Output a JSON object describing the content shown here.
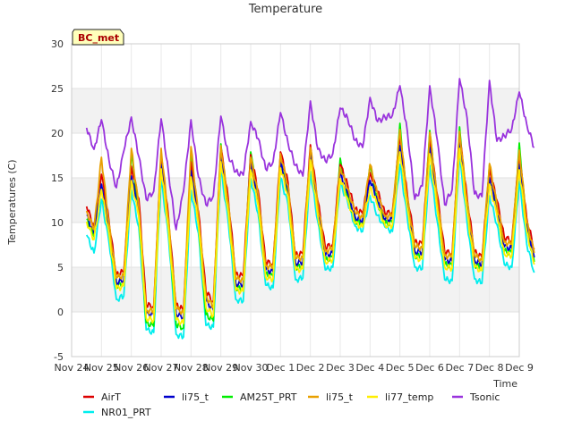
{
  "chart_data": {
    "type": "line",
    "title": "Temperature",
    "xlabel": "Time",
    "ylabel": "Temperatures (C)",
    "site_badge": "BC_met",
    "ylim": [
      -5,
      30
    ],
    "yticks": [
      -5,
      0,
      5,
      10,
      15,
      20,
      25,
      30
    ],
    "xlim": [
      0,
      15
    ],
    "xticks": [
      0,
      1,
      2,
      3,
      4,
      5,
      6,
      7,
      8,
      9,
      10,
      11,
      12,
      13,
      14,
      15
    ],
    "xtick_labels": [
      "Nov 24",
      "Nov 25",
      "Nov 26",
      "Nov 27",
      "Nov 28",
      "Nov 29",
      "Nov 30",
      "Dec 1",
      "Dec 2",
      "Dec 3",
      "Dec 4",
      "Dec 5",
      "Dec 6",
      "Dec 7",
      "Dec 8",
      "Dec 9"
    ],
    "grid": true,
    "background_bands": true,
    "legend_position": "bottom",
    "x_step_days": 0.25,
    "x_start_day": 0.5,
    "series": [
      {
        "name": "AirT",
        "color": "#dd0000",
        "z": 2,
        "values": [
          11.8,
          9.6,
          15.4,
          10.2,
          4.2,
          4.5,
          16.3,
          12.7,
          0.8,
          0.6,
          17.5,
          10.5,
          0.8,
          0.2,
          16.8,
          11.2,
          2.3,
          1.1,
          18.4,
          12.6,
          4.2,
          4.0,
          17.6,
          13.6,
          5.6,
          5.4,
          17.9,
          14.5,
          6.4,
          6.5,
          18.7,
          12.4,
          7.2,
          7.6,
          16.5,
          14.2,
          11.5,
          11.0,
          15.6,
          13.5,
          11.0,
          11.2,
          19.6,
          13.1,
          7.8,
          7.6,
          19.3,
          13.2,
          6.7,
          6.6,
          19.8,
          12.8,
          6.7,
          6.1,
          16.0,
          12.5,
          8.3,
          8.0,
          17.5,
          10.5,
          7.0
        ]
      },
      {
        "name": "NR01_PRT",
        "color": "#00eeee",
        "z": 0,
        "values": [
          8.6,
          6.6,
          12.6,
          7.8,
          1.4,
          1.8,
          13.6,
          9.5,
          -2.0,
          -2.3,
          14.9,
          8.2,
          -2.5,
          -2.8,
          13.6,
          8.8,
          -1.5,
          -1.7,
          16.0,
          10.0,
          1.4,
          1.2,
          14.9,
          11.0,
          3.0,
          2.7,
          15.0,
          12.0,
          3.6,
          3.8,
          15.7,
          10.1,
          4.7,
          5.0,
          14.4,
          12.3,
          9.6,
          9.0,
          13.0,
          10.8,
          9.5,
          9.0,
          16.5,
          10.5,
          5.0,
          4.8,
          16.4,
          10.2,
          3.6,
          3.5,
          17.4,
          10.0,
          3.7,
          3.2,
          13.0,
          9.8,
          5.3,
          5.0,
          14.6,
          7.6,
          4.4
        ]
      },
      {
        "name": "li75_t",
        "color": "#0000cc",
        "z": 3,
        "values": [
          10.8,
          8.8,
          14.3,
          9.5,
          3.3,
          3.6,
          15.2,
          11.4,
          -0.2,
          -0.3,
          16.5,
          9.8,
          -0.2,
          -0.6,
          15.8,
          10.3,
          1.2,
          0.2,
          17.4,
          11.8,
          3.2,
          3.1,
          16.6,
          12.6,
          4.7,
          4.5,
          16.8,
          13.6,
          5.5,
          5.6,
          17.8,
          11.5,
          6.3,
          6.6,
          15.6,
          13.3,
          10.6,
          10.2,
          14.7,
          12.6,
          10.3,
          10.4,
          18.6,
          12.3,
          6.8,
          6.7,
          18.4,
          12.3,
          5.8,
          5.7,
          19.0,
          11.9,
          5.8,
          5.3,
          15.0,
          11.6,
          7.3,
          7.1,
          16.5,
          9.7,
          6.1
        ]
      },
      {
        "name": "AM25T_PRT",
        "color": "#00ee00",
        "z": 1,
        "values": [
          10.4,
          8.4,
          14.0,
          9.1,
          2.9,
          3.2,
          17.8,
          11.0,
          -1.2,
          -1.6,
          17.9,
          9.4,
          -1.4,
          -1.8,
          17.4,
          10.0,
          -0.3,
          -1.0,
          18.8,
          11.4,
          2.7,
          2.6,
          17.9,
          12.2,
          4.2,
          4.0,
          17.2,
          13.2,
          5.0,
          5.1,
          18.1,
          11.0,
          5.8,
          6.1,
          17.2,
          12.9,
          10.2,
          9.8,
          16.4,
          12.2,
          9.9,
          10.0,
          21.1,
          11.9,
          6.3,
          6.2,
          20.3,
          11.9,
          5.3,
          5.2,
          20.7,
          11.6,
          5.3,
          4.9,
          16.4,
          11.2,
          6.8,
          6.6,
          18.9,
          9.3,
          5.6
        ]
      },
      {
        "name": "li75_t",
        "color": "#e8a000",
        "z": 4,
        "values": [
          11.3,
          9.2,
          17.3,
          9.9,
          3.8,
          4.1,
          18.3,
          11.8,
          0.2,
          0.1,
          18.3,
          10.2,
          0.4,
          -0.1,
          18.5,
          10.7,
          1.8,
          0.5,
          18.6,
          12.2,
          3.7,
          3.6,
          17.3,
          13.1,
          5.2,
          5.0,
          17.7,
          14.1,
          6.0,
          6.1,
          18.4,
          12.0,
          6.8,
          7.1,
          16.2,
          13.8,
          11.1,
          10.6,
          16.5,
          13.1,
          10.7,
          10.8,
          20.4,
          12.7,
          7.3,
          7.2,
          20.1,
          12.7,
          6.3,
          6.2,
          20.2,
          12.4,
          6.3,
          5.8,
          16.6,
          12.0,
          7.8,
          7.6,
          18.1,
          10.1,
          6.6
        ]
      },
      {
        "name": "li77_temp",
        "color": "#ffee00",
        "z": 5,
        "values": [
          10.1,
          8.1,
          13.7,
          8.8,
          2.6,
          2.9,
          14.7,
          10.7,
          -0.7,
          -0.9,
          16.0,
          9.1,
          -0.9,
          -1.3,
          15.1,
          9.7,
          0.5,
          -0.4,
          16.8,
          11.1,
          2.4,
          2.3,
          15.9,
          11.9,
          3.9,
          3.7,
          16.1,
          12.9,
          4.7,
          4.8,
          17.0,
          10.7,
          5.6,
          5.9,
          14.9,
          12.6,
          9.9,
          9.5,
          14.0,
          11.9,
          9.7,
          9.7,
          17.9,
          11.6,
          6.0,
          5.9,
          17.7,
          11.5,
          5.0,
          4.9,
          18.3,
          11.2,
          5.0,
          4.6,
          14.3,
          10.9,
          6.5,
          6.3,
          15.9,
          9.0,
          5.3
        ]
      },
      {
        "name": "Tsonic",
        "color": "#9933dd",
        "z": 6,
        "values": [
          20.6,
          18.2,
          21.5,
          17.0,
          13.9,
          18.0,
          21.8,
          17.4,
          12.6,
          13.5,
          21.6,
          15.5,
          9.2,
          13.5,
          21.5,
          15.1,
          12.0,
          13.0,
          21.9,
          17.5,
          15.7,
          15.3,
          21.3,
          19.4,
          16.0,
          16.8,
          22.3,
          18.9,
          16.4,
          15.2,
          23.6,
          18.2,
          16.9,
          17.7,
          22.8,
          21.7,
          19.2,
          18.4,
          24.0,
          21.3,
          21.8,
          22.0,
          25.3,
          20.2,
          12.6,
          14.1,
          25.3,
          19.3,
          12.0,
          13.7,
          26.1,
          21.7,
          13.2,
          12.9,
          25.9,
          19.1,
          19.7,
          20.5,
          24.6,
          21.0,
          18.4
        ]
      }
    ]
  }
}
